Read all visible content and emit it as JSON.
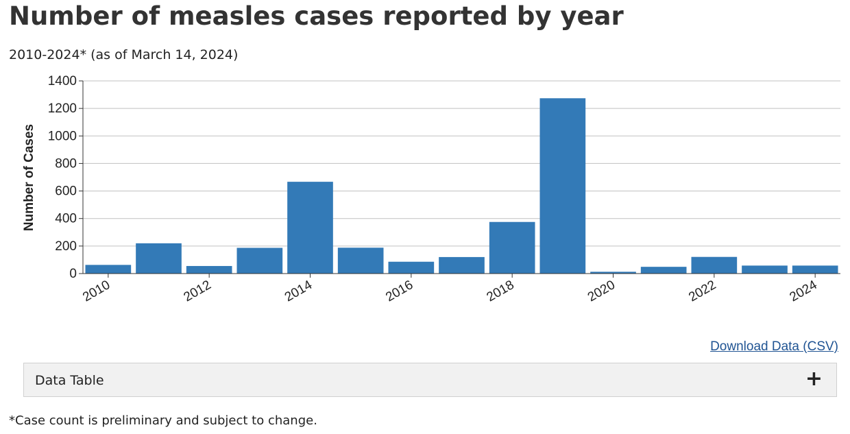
{
  "header": {
    "title": "Number of measles cases reported by year",
    "subtitle": "2010-2024* (as of March 14, 2024)"
  },
  "links": {
    "download": "Download Data (CSV)"
  },
  "accordion": {
    "label": "Data Table",
    "icon": "plus-icon",
    "icon_glyph": "+"
  },
  "footnote": "*Case count is preliminary and subject to change.",
  "colors": {
    "bar": "#337ab7",
    "grid": "#c0c0c0",
    "axis": "#333333",
    "link": "#205493"
  },
  "chart_data": {
    "type": "bar",
    "title": "Number of measles cases reported by year",
    "subtitle": "2010-2024* (as of March 14, 2024)",
    "xlabel": "",
    "ylabel": "Number of Cases",
    "categories": [
      "2010",
      "2011",
      "2012",
      "2013",
      "2014",
      "2015",
      "2016",
      "2017",
      "2018",
      "2019",
      "2020",
      "2021",
      "2022",
      "2023",
      "2024"
    ],
    "values": [
      63,
      220,
      55,
      187,
      667,
      188,
      86,
      120,
      375,
      1274,
      13,
      49,
      121,
      58,
      58
    ],
    "x_tick_labels": [
      "2010",
      "2012",
      "2014",
      "2016",
      "2018",
      "2020",
      "2022",
      "2024"
    ],
    "y_ticks": [
      0,
      200,
      400,
      600,
      800,
      1000,
      1200,
      1400
    ],
    "ylim": [
      0,
      1400
    ],
    "grid": true
  }
}
